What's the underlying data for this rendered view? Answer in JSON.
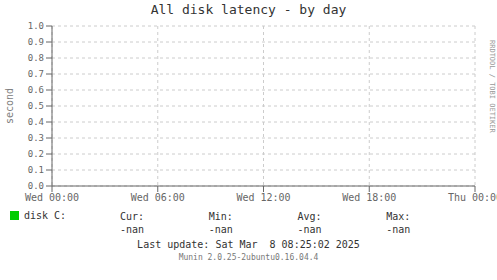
{
  "chart_data": {
    "type": "line",
    "title": "All disk latency - by day",
    "y_label": "second",
    "categories": [
      "Wed 00:00",
      "Wed 06:00",
      "Wed 12:00",
      "Wed 18:00",
      "Thu 00:00"
    ],
    "series": [
      {
        "name": "disk C:",
        "color": "#00cc00",
        "values": [
          null,
          null,
          null,
          null,
          null
        ]
      }
    ],
    "ylim": [
      0.0,
      1.0
    ],
    "yticks": [
      {
        "value": 0,
        "label": "0.0"
      },
      0.1,
      0.2,
      0.3,
      0.4,
      0.5,
      0.6,
      0.7,
      0.8,
      0.9,
      {
        "value": 1,
        "label": "1.0"
      }
    ],
    "grid": true,
    "legend": "bottom",
    "annotations": [
      "Cur:",
      "-nan",
      "Min:",
      "-nan",
      "Avg:",
      "-nan",
      "Max:",
      "-nan",
      "Last update: Sat Mar  8 08:25:02 2025",
      "Munin 2.0.25-2ubuntu0.16.04.4",
      "RRDTOOL / TOBI OETIKER"
    ]
  }
}
